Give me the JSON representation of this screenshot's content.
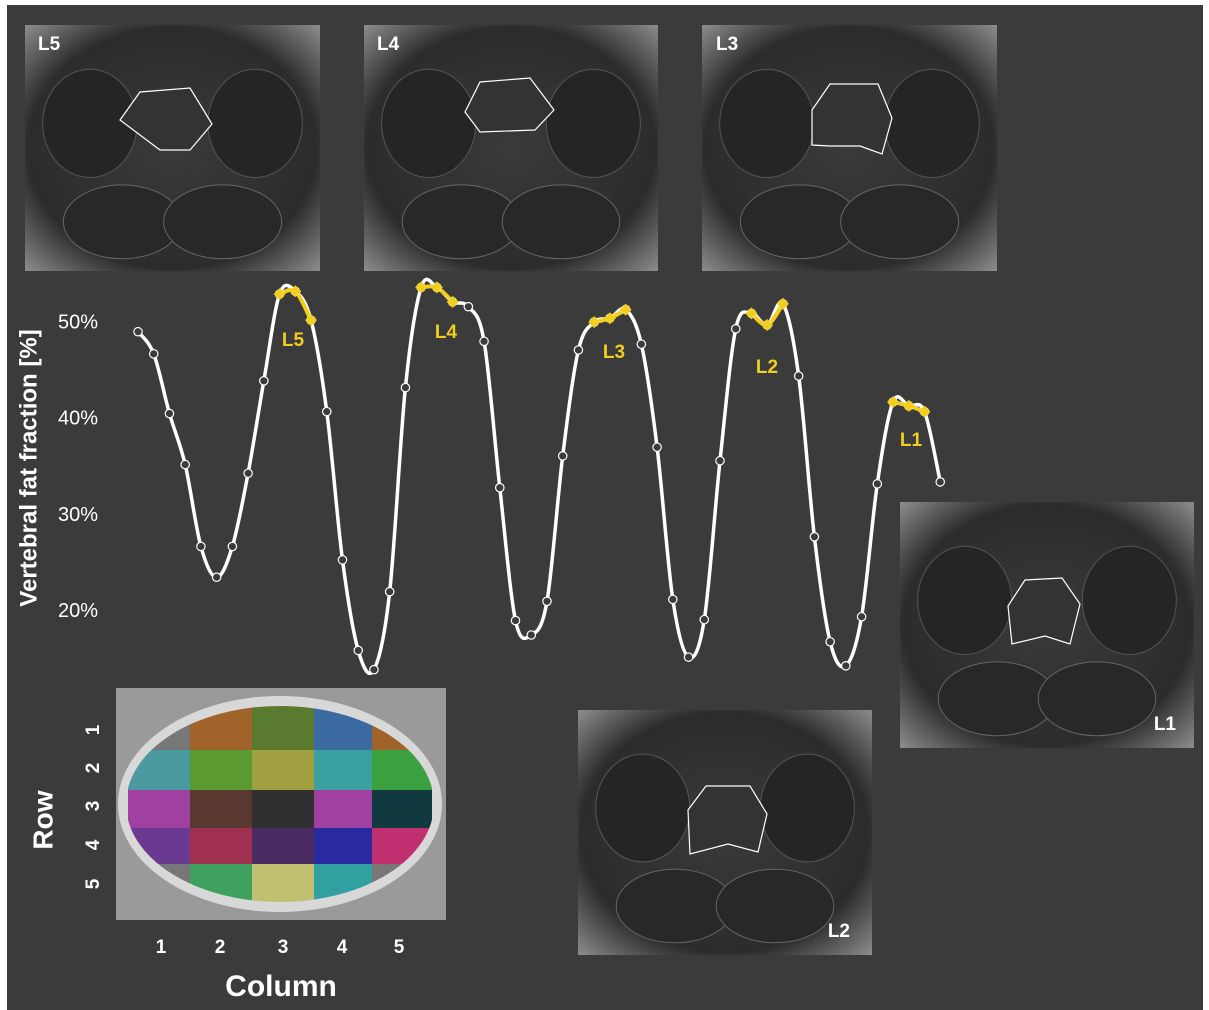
{
  "chart_data": {
    "type": "line",
    "y_label": "Vertebral fat fraction [%]",
    "categories": [
      null,
      null,
      null,
      null,
      null,
      null,
      null,
      null,
      null,
      null,
      null,
      null,
      null,
      null,
      null,
      null,
      null,
      null,
      null,
      null,
      null,
      null,
      null,
      null,
      null,
      null,
      null,
      null,
      null,
      null,
      null,
      null,
      null,
      null,
      null,
      null,
      null,
      null,
      null,
      null,
      null,
      null,
      null,
      null,
      null,
      null,
      null,
      null,
      null,
      null,
      null,
      null
    ],
    "series": [
      {
        "color": "#ffffff",
        "values": [
          49.1,
          46.8,
          40.6,
          35.3,
          26.8,
          23.6,
          26.8,
          34.4,
          44.0,
          53.0,
          53.3,
          50.3,
          40.8,
          25.4,
          16.0,
          14.0,
          22.1,
          43.3,
          53.7,
          53.7,
          52.2,
          51.7,
          48.1,
          32.9,
          19.1,
          17.6,
          21.1,
          36.2,
          47.2,
          50.1,
          50.5,
          51.4,
          47.8,
          37.1,
          21.3,
          15.3,
          19.2,
          35.7,
          49.4,
          51.0,
          49.8,
          52.0,
          44.5,
          27.8,
          16.9,
          14.4,
          19.5,
          33.3,
          41.8,
          41.4,
          40.8,
          33.5
        ]
      },
      {
        "color": "#f2cf1d",
        "values": [
          null,
          null,
          null,
          null,
          null,
          null,
          null,
          null,
          null,
          53.0,
          53.3,
          50.3,
          null,
          null,
          null,
          null,
          null,
          null,
          53.7,
          53.7,
          52.2,
          null,
          null,
          null,
          null,
          null,
          null,
          null,
          null,
          50.1,
          50.5,
          51.4,
          null,
          null,
          null,
          null,
          null,
          null,
          null,
          51.0,
          49.8,
          52.0,
          null,
          null,
          null,
          null,
          null,
          null,
          41.8,
          41.4,
          40.8,
          null
        ]
      }
    ],
    "annotations": [
      "L5",
      "L4",
      "L3",
      "L2",
      "L1"
    ],
    "ylim": [
      13,
      55
    ],
    "yticks": [
      {
        "value": 20,
        "label": "20%"
      },
      {
        "value": 30,
        "label": "30%"
      },
      {
        "value": 40,
        "label": "40%"
      },
      {
        "value": 50,
        "label": "50%"
      }
    ]
  },
  "images": [
    {
      "label": "L5"
    },
    {
      "label": "L4"
    },
    {
      "label": "L3"
    },
    {
      "label": "L1"
    },
    {
      "label": "L2"
    }
  ],
  "grid_panel": {
    "row_label": "Row",
    "column_label": "Column",
    "rows": [
      "1",
      "2",
      "3",
      "4",
      "5"
    ],
    "columns": [
      "1",
      "2",
      "3",
      "4",
      "5"
    ]
  }
}
